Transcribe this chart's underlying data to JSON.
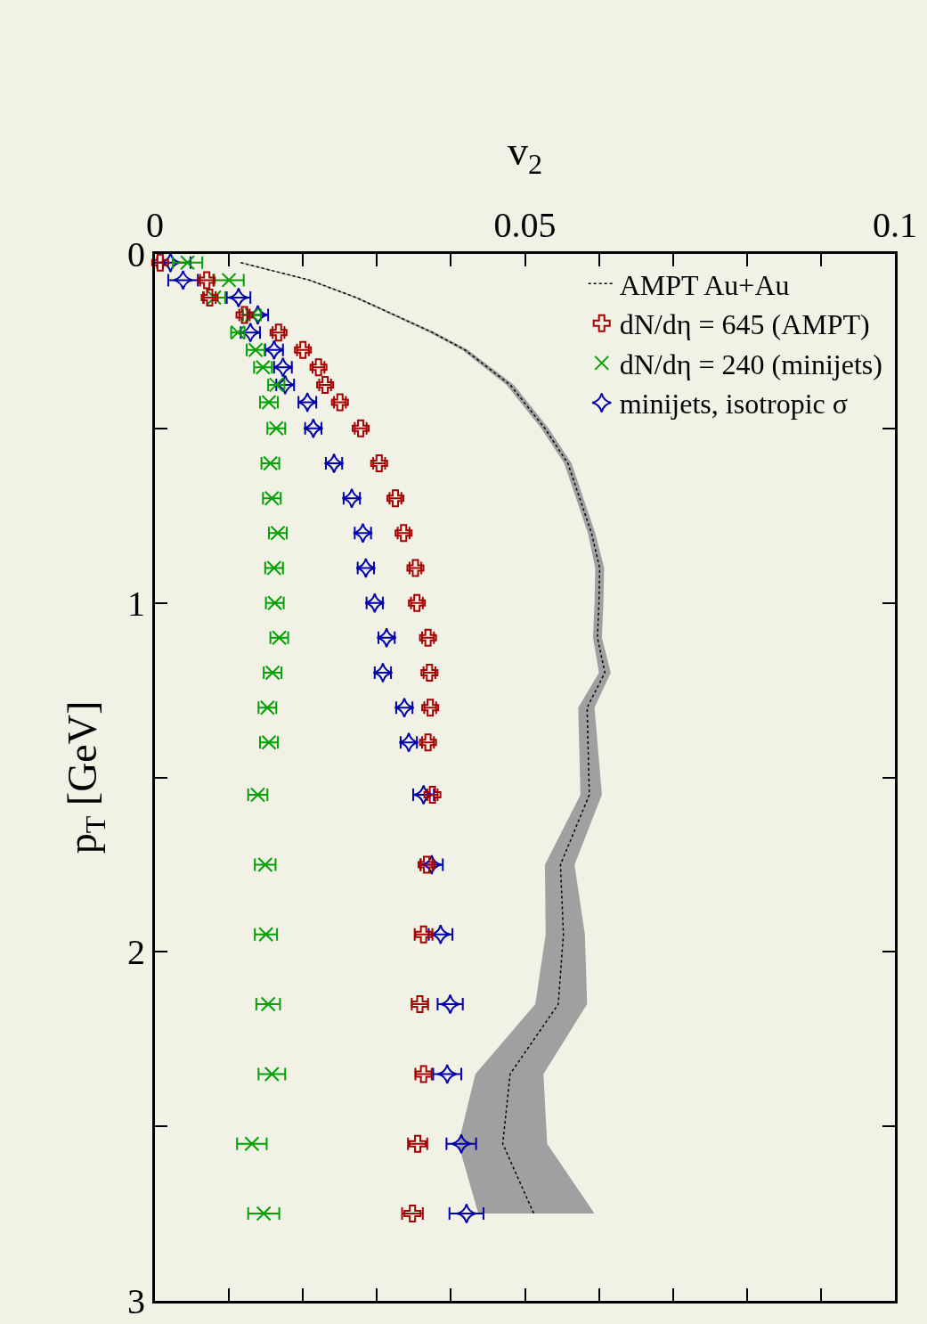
{
  "chart_data": {
    "type": "scatter",
    "xlabel": "v$_{2}$",
    "ylabel": "p$_{T}$ [GeV]",
    "orientation": "horizontal",
    "x": [
      0.025,
      0.075,
      0.125,
      0.175,
      0.225,
      0.275,
      0.325,
      0.375,
      0.425,
      0.5,
      0.6,
      0.7,
      0.8,
      0.9,
      1,
      1.1,
      1.2,
      1.3,
      1.4,
      1.55,
      1.75,
      1.95,
      2.15,
      2.35,
      2.55,
      2.75
    ],
    "ylim": [
      3,
      0
    ],
    "yticks": [
      0,
      {
        "value": 0.5,
        "label": null
      },
      1,
      {
        "value": 1.5,
        "label": null
      },
      2,
      {
        "value": 2.5,
        "label": null
      },
      3
    ],
    "xlim": [
      0,
      0.1
    ],
    "xticks": [
      0,
      {
        "value": 0.01,
        "label": null
      },
      {
        "value": 0.02,
        "label": null
      },
      {
        "value": 0.03,
        "label": null
      },
      {
        "value": 0.04,
        "label": null
      },
      0.05,
      {
        "value": 0.06,
        "label": null
      },
      {
        "value": 0.07,
        "label": null
      },
      {
        "value": 0.08,
        "label": null
      },
      {
        "value": 0.09,
        "label": null
      },
      0.1
    ],
    "grid": false,
    "legend": "top right",
    "series": [
      {
        "name": "AMPT Au+Au",
        "type": "line",
        "line_style": "dotted",
        "color": "#000000",
        "x": [
          0.025,
          0.075,
          0.125,
          0.225,
          0.275,
          0.375,
          0.5,
          0.6,
          0.8,
          0.9,
          1,
          1.1,
          1.2,
          1.3,
          1.55,
          1.75,
          1.95,
          2.15,
          2.35,
          2.55,
          2.75
        ],
        "values": [
          0.0116,
          0.0209,
          0.0272,
          0.0375,
          0.0419,
          0.048,
          0.0527,
          0.0558,
          0.059,
          0.0601,
          0.06,
          0.0598,
          0.0608,
          0.0584,
          0.0587,
          0.0548,
          0.0552,
          0.0545,
          0.048,
          0.047,
          0.0512
        ],
        "lower": [
          0.0113,
          0.0206,
          0.0269,
          0.0371,
          0.0415,
          0.0475,
          0.0522,
          0.0553,
          0.0585,
          0.0595,
          0.0594,
          0.0592,
          0.06,
          0.0572,
          0.0575,
          0.0527,
          0.0528,
          0.0514,
          0.0433,
          0.041,
          0.0437
        ],
        "upper": [
          0.0119,
          0.0212,
          0.0275,
          0.0379,
          0.0423,
          0.0485,
          0.0532,
          0.0563,
          0.0595,
          0.0607,
          0.0606,
          0.0604,
          0.0616,
          0.0594,
          0.0604,
          0.0567,
          0.0581,
          0.0584,
          0.0525,
          0.053,
          0.0594
        ]
      },
      {
        "name": "dN/dη = 645 (AMPT)",
        "type": "scatter",
        "marker": "cross",
        "color": "#a50000",
        "values": [
          0.0007,
          0.007,
          0.0074,
          0.0121,
          0.0167,
          0.02,
          0.0221,
          0.023,
          0.025,
          0.0278,
          0.0303,
          0.0325,
          0.0336,
          0.0352,
          0.0354,
          0.0369,
          0.0371,
          0.0372,
          0.0369,
          0.0375,
          0.0367,
          0.0363,
          0.0358,
          0.0363,
          0.0355,
          0.0348
        ],
        "errors": [
          0.0004,
          0.0009,
          0.0008,
          0.0007,
          0.0008,
          0.0008,
          0.0008,
          0.0008,
          0.0008,
          0.0008,
          0.0008,
          0.0008,
          0.0008,
          0.0008,
          0.0008,
          0.0008,
          0.0008,
          0.0008,
          0.0008,
          0.0007,
          0.0008,
          0.0012,
          0.0011,
          0.0011,
          0.0013,
          0.0014
        ]
      },
      {
        "name": "dN/dη = 240 (minijets)",
        "type": "scatter",
        "marker": "x",
        "color": "#00a000",
        "values": [
          0.0044,
          0.01,
          0.008,
          0.0131,
          0.0112,
          0.0136,
          0.0146,
          0.0164,
          0.0154,
          0.0164,
          0.0156,
          0.0158,
          0.0166,
          0.0161,
          0.0162,
          0.0168,
          0.0159,
          0.0152,
          0.0154,
          0.0139,
          0.0149,
          0.015,
          0.0153,
          0.0158,
          0.0131,
          0.0147
        ],
        "errors": [
          0.002,
          0.002,
          0.0015,
          0.0012,
          0.0009,
          0.0012,
          0.0012,
          0.0011,
          0.0012,
          0.0012,
          0.0012,
          0.0012,
          0.0012,
          0.0012,
          0.0012,
          0.0012,
          0.0012,
          0.0012,
          0.0012,
          0.0013,
          0.0014,
          0.0015,
          0.0016,
          0.0018,
          0.002,
          0.0021
        ]
      },
      {
        "name": "minijets, isotropic σ",
        "type": "scatter",
        "marker": "star",
        "color": "#0000a8",
        "values": [
          0.0021,
          0.0038,
          0.0113,
          0.0139,
          0.0129,
          0.0161,
          0.0173,
          0.0176,
          0.0206,
          0.0214,
          0.0242,
          0.0266,
          0.0281,
          0.0285,
          0.0297,
          0.0313,
          0.0308,
          0.0337,
          0.0343,
          0.0363,
          0.0374,
          0.0386,
          0.0399,
          0.0395,
          0.0414,
          0.0421
        ],
        "errors": [
          0.0027,
          0.002,
          0.0016,
          0.0014,
          0.0013,
          0.0012,
          0.0012,
          0.0012,
          0.0012,
          0.0011,
          0.0011,
          0.0011,
          0.0011,
          0.0011,
          0.0011,
          0.0011,
          0.0011,
          0.0011,
          0.0011,
          0.0014,
          0.0015,
          0.0016,
          0.0017,
          0.0019,
          0.002,
          0.0023
        ]
      }
    ]
  }
}
